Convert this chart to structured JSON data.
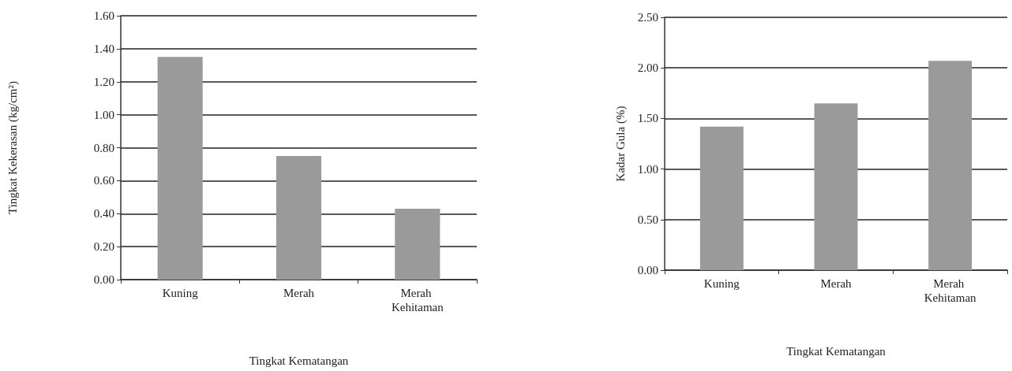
{
  "chart_data": [
    {
      "type": "bar",
      "xlabel": "Tingkat Kematangan",
      "ylabel": "Tingkat Kekerasan (kg/cm²)",
      "categories": [
        "Kuning",
        "Merah",
        "Merah Kehitaman"
      ],
      "values": [
        1.35,
        0.75,
        0.43
      ],
      "color": "#9a9a9a",
      "ylim": [
        0,
        1.6
      ],
      "yticks": [
        {
          "value": 0,
          "label": "0.00"
        },
        {
          "value": 0.2,
          "label": "0.20"
        },
        {
          "value": 0.4,
          "label": "0.40"
        },
        {
          "value": 0.6,
          "label": "0.60"
        },
        {
          "value": 0.8,
          "label": "0.80"
        },
        {
          "value": 1,
          "label": "1.00"
        },
        {
          "value": 1.2,
          "label": "1.20"
        },
        {
          "value": 1.4,
          "label": "1.40"
        },
        {
          "value": 1.6,
          "label": "1.60"
        }
      ],
      "grid": "y"
    },
    {
      "type": "bar",
      "xlabel": "Tingkat Kematangan",
      "ylabel": "Kadar Gula (%)",
      "categories": [
        "Kuning",
        "Merah",
        "Merah Kehitaman"
      ],
      "values": [
        1.42,
        1.65,
        2.07
      ],
      "color": "#9a9a9a",
      "ylim": [
        0,
        2.5
      ],
      "yticks": [
        {
          "value": 0,
          "label": "0.00"
        },
        {
          "value": 0.5,
          "label": "0.50"
        },
        {
          "value": 1,
          "label": "1.00"
        },
        {
          "value": 1.5,
          "label": "1.50"
        },
        {
          "value": 2,
          "label": "2.00"
        },
        {
          "value": 2.5,
          "label": "2.50"
        }
      ],
      "grid": "y"
    }
  ]
}
